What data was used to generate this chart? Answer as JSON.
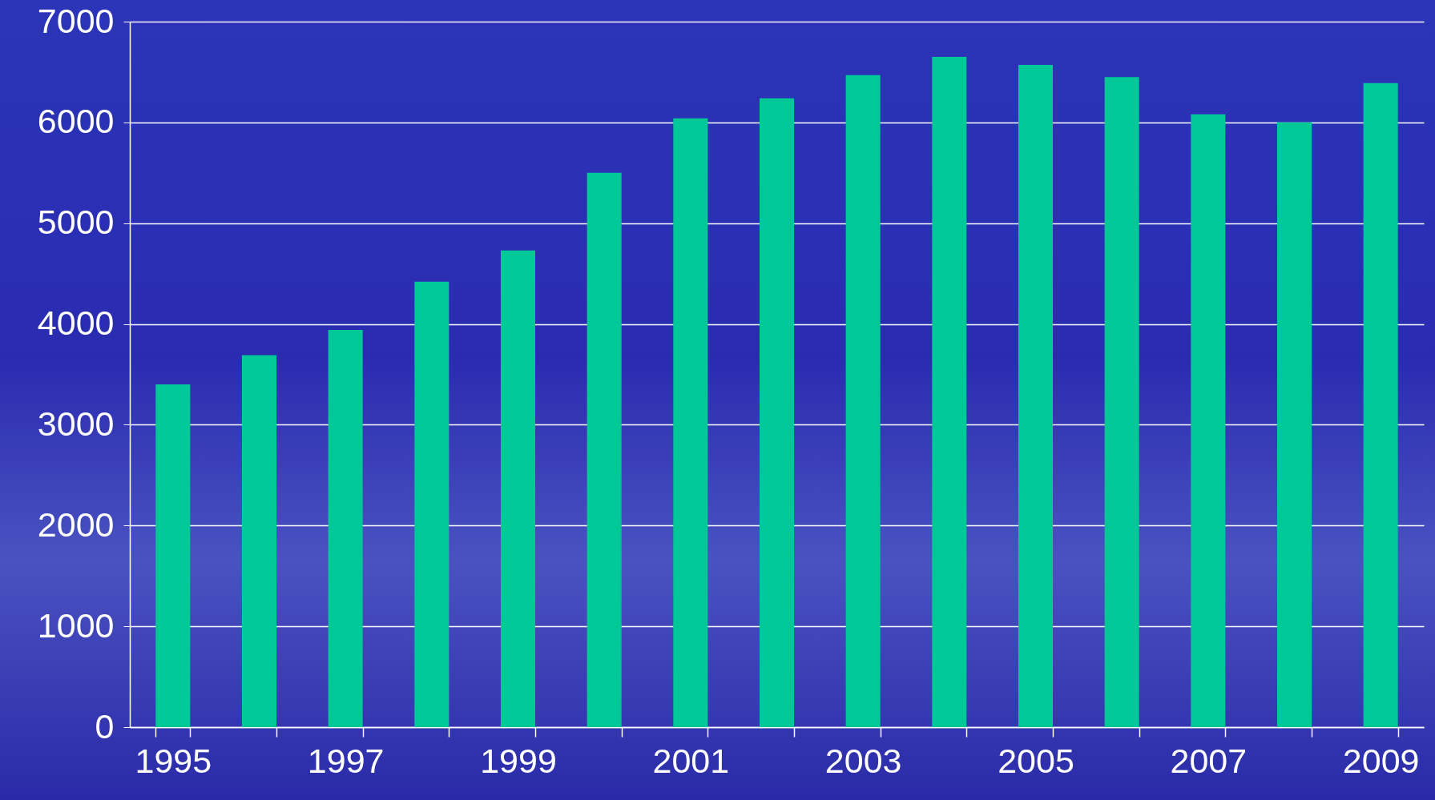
{
  "chart_data": {
    "type": "bar",
    "categories": [
      "1995",
      null,
      "1997",
      null,
      "1999",
      null,
      "2001",
      null,
      "2003",
      null,
      "2005",
      null,
      "2007",
      null,
      "2009"
    ],
    "values": [
      3400,
      3690,
      3940,
      4420,
      4730,
      5500,
      6040,
      6240,
      6470,
      6650,
      6570,
      6450,
      6080,
      6000,
      6390
    ],
    "color": "#00c896",
    "ylim": [
      0,
      7000
    ],
    "yticks": [
      0,
      1000,
      2000,
      3000,
      4000,
      5000,
      6000,
      7000
    ],
    "grid": "y"
  }
}
